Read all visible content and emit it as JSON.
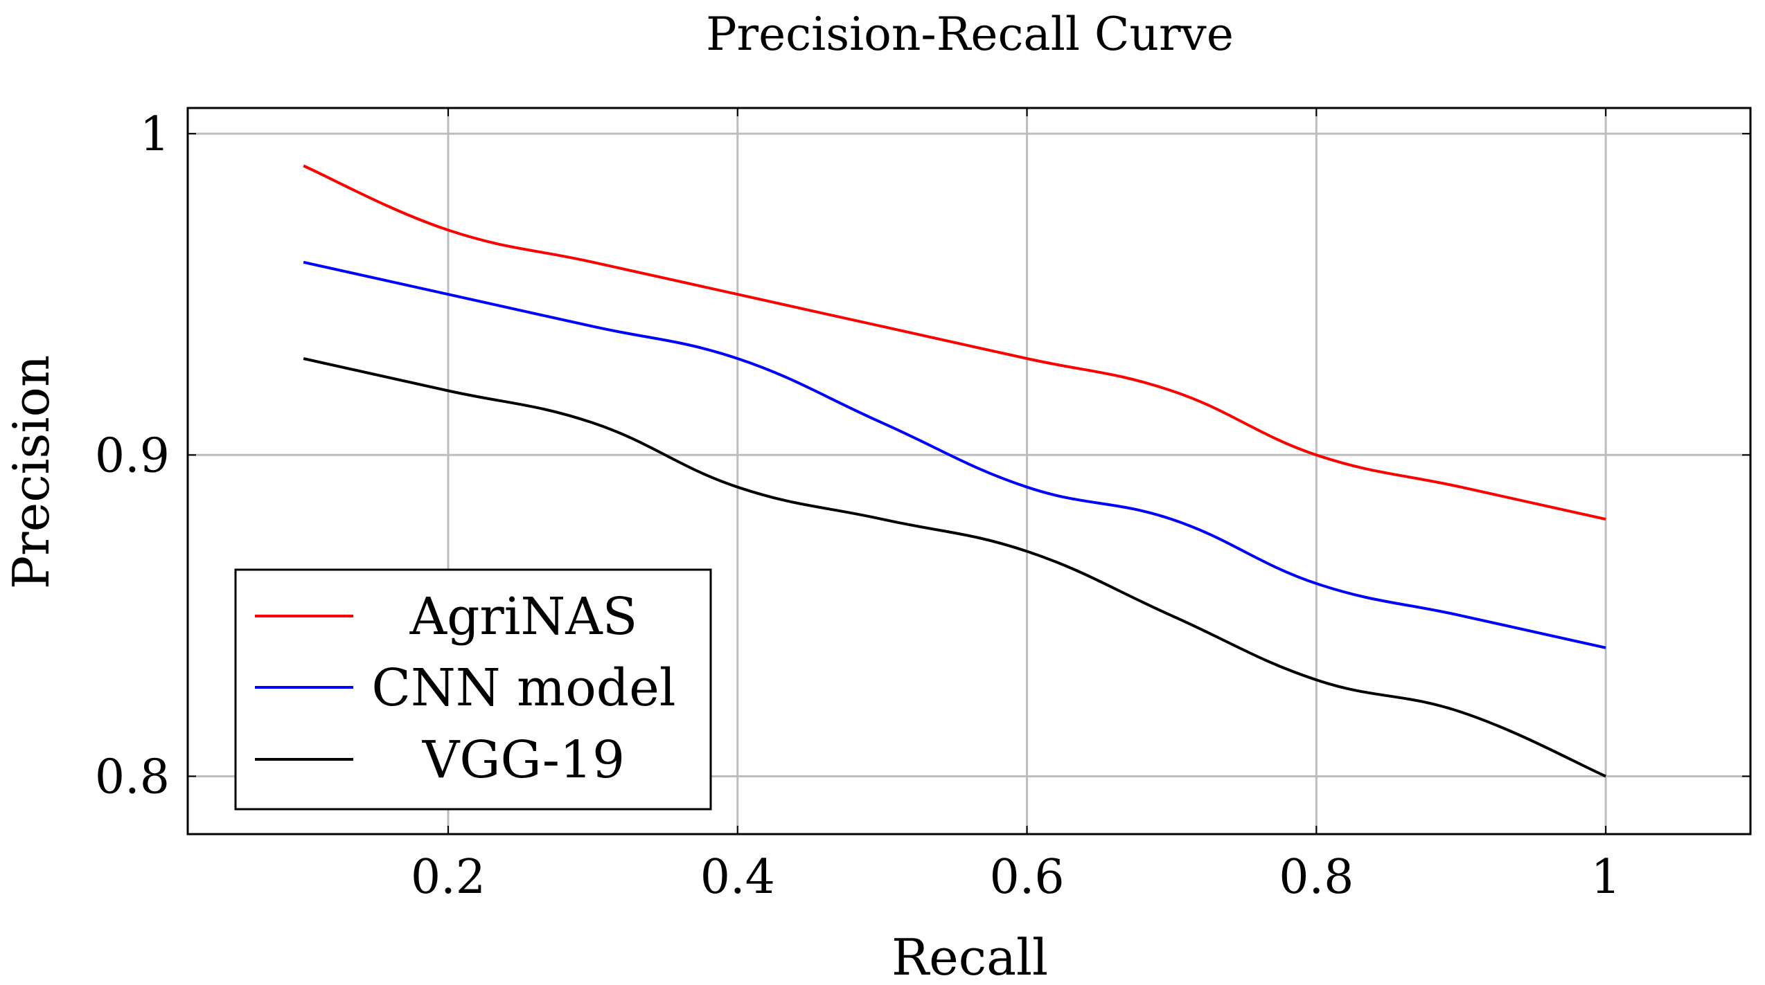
{
  "chart_data": {
    "type": "line",
    "title": "Precision-Recall Curve",
    "xlabel": "Recall",
    "ylabel": "Precision",
    "xlim": [
      0.02,
      1.1
    ],
    "ylim": [
      0.782,
      1.008
    ],
    "x_ticks": [
      0.2,
      0.4,
      0.6,
      0.8,
      1.0
    ],
    "x_tick_labels": [
      "0.2",
      "0.4",
      "0.6",
      "0.8",
      "1"
    ],
    "y_ticks": [
      0.8,
      0.9,
      1.0
    ],
    "y_tick_labels": [
      "0.8",
      "0.9",
      "1"
    ],
    "grid": true,
    "legend_position": "bottom-left",
    "x": [
      0.1,
      0.2,
      0.3,
      0.4,
      0.5,
      0.6,
      0.7,
      0.8,
      0.9,
      1.0
    ],
    "series": [
      {
        "name": "AgriNAS",
        "color": "#ff0000",
        "values": [
          0.99,
          0.97,
          0.96,
          0.95,
          0.94,
          0.93,
          0.92,
          0.9,
          0.89,
          0.88
        ]
      },
      {
        "name": "CNN model",
        "color": "#0000ff",
        "values": [
          0.96,
          0.95,
          0.94,
          0.93,
          0.91,
          0.89,
          0.88,
          0.86,
          0.85,
          0.84
        ]
      },
      {
        "name": "VGG-19",
        "color": "#000000",
        "values": [
          0.93,
          0.92,
          0.91,
          0.89,
          0.88,
          0.87,
          0.85,
          0.83,
          0.82,
          0.8
        ]
      }
    ]
  }
}
